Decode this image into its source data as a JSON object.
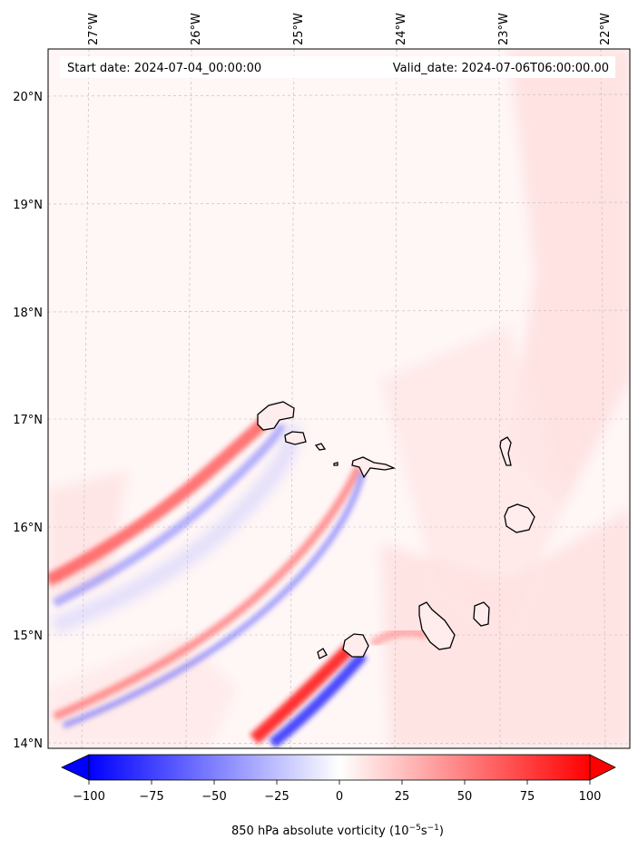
{
  "map": {
    "start_date": "Start date: 2024-07-04_00:00:00",
    "valid_date": "Valid_date: 2024-07-06T06:00:00.00",
    "lon_labels": [
      "27°W",
      "26°W",
      "25°W",
      "24°W",
      "23°W",
      "22°W"
    ],
    "lat_labels": [
      "20°N",
      "19°N",
      "18°N",
      "17°N",
      "16°N",
      "15°N",
      "14°N"
    ],
    "gridlines": true,
    "colormap": "bwr",
    "colors": {
      "negative": "#0000ff",
      "zero": "#ffffff",
      "positive": "#ff0000",
      "coastline": "#000000"
    }
  },
  "colorbar": {
    "label": "850 hPa absolute vorticity (10",
    "label_exp": "−5",
    "label_mid": "s",
    "label_exp2": "−1",
    "label_end": ")",
    "ticks": [
      "−100",
      "−75",
      "−50",
      "−25",
      "0",
      "25",
      "50",
      "75",
      "100"
    ],
    "range": [
      -100,
      100
    ],
    "extend": "both"
  }
}
